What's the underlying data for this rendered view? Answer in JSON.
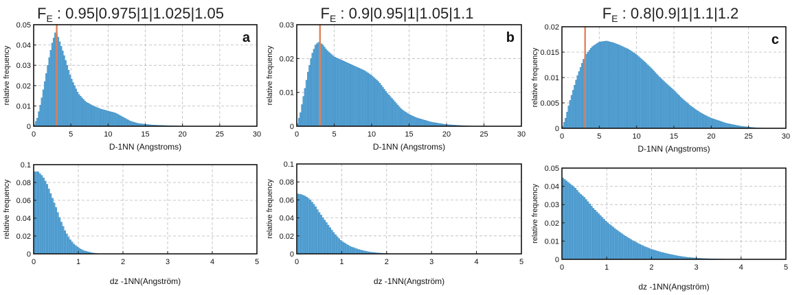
{
  "headers": [
    {
      "prefix": "F",
      "sub": "E",
      "rest": " : 0.95|0.975|1|1.025|1.05"
    },
    {
      "prefix": "F",
      "sub": "E",
      "rest": " : 0.9|0.95|1|1.05|1.1"
    },
    {
      "prefix": "F",
      "sub": "E",
      "rest": " : 0.8|0.9|1|1.1|1.2"
    }
  ],
  "colors": {
    "bar": "#5aa5d6",
    "bar_edge": "#2f7fb8",
    "marker": "#e0825a",
    "grid": "#b8b8b8"
  },
  "chart_data": [
    {
      "type": "bar",
      "panel": "a",
      "title": "",
      "xlabel": "D-1NN (Angstroms)",
      "ylabel": "relative frequency",
      "xlim": [
        0,
        30
      ],
      "ylim": [
        0,
        0.05
      ],
      "xticks": [
        "0",
        "5",
        "10",
        "15",
        "20",
        "25",
        "30"
      ],
      "yticks": [
        "0",
        "0.01",
        "0.02",
        "0.03",
        "0.04",
        "0.05"
      ],
      "grid": true,
      "vline": 3.1,
      "bin_width": 0.2,
      "profile": [
        [
          0,
          0
        ],
        [
          0.5,
          0.004
        ],
        [
          1.0,
          0.012
        ],
        [
          1.5,
          0.022
        ],
        [
          2.0,
          0.032
        ],
        [
          2.5,
          0.041
        ],
        [
          2.9,
          0.046
        ],
        [
          3.2,
          0.045
        ],
        [
          4.0,
          0.036
        ],
        [
          5.0,
          0.024
        ],
        [
          6.0,
          0.016
        ],
        [
          7.0,
          0.012
        ],
        [
          8.0,
          0.01
        ],
        [
          9.0,
          0.0085
        ],
        [
          10.0,
          0.0075
        ],
        [
          11.0,
          0.0065
        ],
        [
          12.0,
          0.0045
        ],
        [
          13.0,
          0.0025
        ],
        [
          14.0,
          0.0014
        ],
        [
          16.0,
          0.0006
        ],
        [
          18.0,
          0.0003
        ],
        [
          20.0,
          0.0001
        ],
        [
          22.0,
          0
        ]
      ]
    },
    {
      "type": "bar",
      "panel": "b",
      "title": "",
      "xlabel": "D-1NN (Angstroms)",
      "ylabel": "relative frequency",
      "xlim": [
        0,
        30
      ],
      "ylim": [
        0,
        0.03
      ],
      "xticks": [
        "0",
        "5",
        "10",
        "15",
        "20",
        "25",
        "30"
      ],
      "yticks": [
        "0",
        "0.01",
        "0.02",
        "0.03"
      ],
      "grid": true,
      "vline": 3.1,
      "bin_width": 0.2,
      "profile": [
        [
          0,
          0
        ],
        [
          0.5,
          0.004
        ],
        [
          1.0,
          0.01
        ],
        [
          1.5,
          0.016
        ],
        [
          2.0,
          0.021
        ],
        [
          2.5,
          0.024
        ],
        [
          3.0,
          0.025
        ],
        [
          3.5,
          0.024
        ],
        [
          4.0,
          0.0225
        ],
        [
          5.0,
          0.0205
        ],
        [
          6.0,
          0.0195
        ],
        [
          7.0,
          0.0185
        ],
        [
          8.0,
          0.0175
        ],
        [
          9.0,
          0.0165
        ],
        [
          10.0,
          0.015
        ],
        [
          11.0,
          0.013
        ],
        [
          12.0,
          0.01
        ],
        [
          13.0,
          0.0075
        ],
        [
          14.0,
          0.005
        ],
        [
          15.0,
          0.0035
        ],
        [
          16.0,
          0.0025
        ],
        [
          18.0,
          0.0012
        ],
        [
          20.0,
          0.0005
        ],
        [
          22.0,
          0.0002
        ],
        [
          24.0,
          0
        ]
      ]
    },
    {
      "type": "bar",
      "panel": "c",
      "title": "",
      "xlabel": "D-1NN (Angstroms)",
      "ylabel": "relative frequency",
      "xlim": [
        0,
        30
      ],
      "ylim": [
        0,
        0.02
      ],
      "xticks": [
        "0",
        "5",
        "10",
        "15",
        "20",
        "25",
        "30"
      ],
      "yticks": [
        "0",
        "0.005",
        "0.01",
        "0.015",
        "0.02"
      ],
      "grid": true,
      "vline": 3.1,
      "bin_width": 0.2,
      "profile": [
        [
          0,
          0
        ],
        [
          0.5,
          0.002
        ],
        [
          1.0,
          0.005
        ],
        [
          2.0,
          0.01
        ],
        [
          3.0,
          0.014
        ],
        [
          4.0,
          0.016
        ],
        [
          5.0,
          0.017
        ],
        [
          6.0,
          0.0172
        ],
        [
          7.0,
          0.0168
        ],
        [
          8.0,
          0.0162
        ],
        [
          9.0,
          0.0155
        ],
        [
          10.0,
          0.0145
        ],
        [
          11.0,
          0.0132
        ],
        [
          12.0,
          0.0118
        ],
        [
          13.0,
          0.0102
        ],
        [
          14.0,
          0.0088
        ],
        [
          15.0,
          0.0075
        ],
        [
          16.0,
          0.006
        ],
        [
          17.0,
          0.0047
        ],
        [
          18.0,
          0.0036
        ],
        [
          19.0,
          0.0027
        ],
        [
          20.0,
          0.002
        ],
        [
          22.0,
          0.001
        ],
        [
          24.0,
          0.0004
        ],
        [
          26.0,
          0.0001
        ],
        [
          28.0,
          0
        ]
      ]
    },
    {
      "type": "bar",
      "panel": "",
      "title": "",
      "xlabel": "dz -1NN(Angström)",
      "ylabel": "relative frequency",
      "xlim": [
        0,
        5
      ],
      "ylim": [
        0,
        0.1
      ],
      "xticks": [
        "0",
        "1",
        "2",
        "3",
        "4",
        "5"
      ],
      "yticks": [
        "0",
        "0.02",
        "0.04",
        "0.06",
        "0.08",
        "0.1"
      ],
      "grid": true,
      "vline": null,
      "bin_width": 0.04,
      "profile": [
        [
          0,
          0.092
        ],
        [
          0.1,
          0.092
        ],
        [
          0.2,
          0.087
        ],
        [
          0.3,
          0.078
        ],
        [
          0.4,
          0.065
        ],
        [
          0.5,
          0.052
        ],
        [
          0.6,
          0.038
        ],
        [
          0.7,
          0.026
        ],
        [
          0.8,
          0.017
        ],
        [
          0.9,
          0.011
        ],
        [
          1.0,
          0.007
        ],
        [
          1.1,
          0.004
        ],
        [
          1.2,
          0.0025
        ],
        [
          1.3,
          0.0012
        ],
        [
          1.4,
          0.0005
        ],
        [
          1.5,
          0
        ]
      ]
    },
    {
      "type": "bar",
      "panel": "",
      "title": "",
      "xlabel": "dz -1NN(Angström)",
      "ylabel": "relative frequency",
      "xlim": [
        0,
        5
      ],
      "ylim": [
        0,
        0.1
      ],
      "xticks": [
        "0",
        "1",
        "2",
        "3",
        "4",
        "5"
      ],
      "yticks": [
        "0",
        "0.02",
        "0.04",
        "0.06",
        "0.08",
        "0.1"
      ],
      "grid": true,
      "vline": null,
      "bin_width": 0.04,
      "profile": [
        [
          0,
          0.067
        ],
        [
          0.1,
          0.066
        ],
        [
          0.2,
          0.064
        ],
        [
          0.3,
          0.06
        ],
        [
          0.4,
          0.054
        ],
        [
          0.5,
          0.046
        ],
        [
          0.6,
          0.039
        ],
        [
          0.7,
          0.032
        ],
        [
          0.8,
          0.025
        ],
        [
          0.9,
          0.019
        ],
        [
          1.0,
          0.014
        ],
        [
          1.2,
          0.008
        ],
        [
          1.4,
          0.0045
        ],
        [
          1.6,
          0.0022
        ],
        [
          1.8,
          0.001
        ],
        [
          2.0,
          0.0004
        ],
        [
          2.2,
          0
        ]
      ]
    },
    {
      "type": "bar",
      "panel": "",
      "title": "",
      "xlabel": "dz -1NN(Angström)",
      "ylabel": "relative frequency",
      "xlim": [
        0,
        5
      ],
      "ylim": [
        0,
        0.05
      ],
      "xticks": [
        "0",
        "1",
        "2",
        "3",
        "4",
        "5"
      ],
      "yticks": [
        "0",
        "0.01",
        "0.02",
        "0.03",
        "0.04",
        "0.05"
      ],
      "grid": true,
      "vline": null,
      "bin_width": 0.04,
      "profile": [
        [
          0,
          0.045
        ],
        [
          0.1,
          0.043
        ],
        [
          0.2,
          0.041
        ],
        [
          0.3,
          0.039
        ],
        [
          0.4,
          0.036
        ],
        [
          0.5,
          0.034
        ],
        [
          0.6,
          0.031
        ],
        [
          0.7,
          0.028
        ],
        [
          0.8,
          0.0255
        ],
        [
          0.9,
          0.023
        ],
        [
          1.0,
          0.0205
        ],
        [
          1.2,
          0.0165
        ],
        [
          1.4,
          0.013
        ],
        [
          1.6,
          0.01
        ],
        [
          1.8,
          0.0075
        ],
        [
          2.0,
          0.0055
        ],
        [
          2.2,
          0.004
        ],
        [
          2.4,
          0.0028
        ],
        [
          2.6,
          0.0018
        ],
        [
          2.8,
          0.0011
        ],
        [
          3.0,
          0.0007
        ],
        [
          3.2,
          0.0004
        ],
        [
          3.5,
          0.0002
        ],
        [
          4.0,
          0
        ]
      ]
    }
  ]
}
